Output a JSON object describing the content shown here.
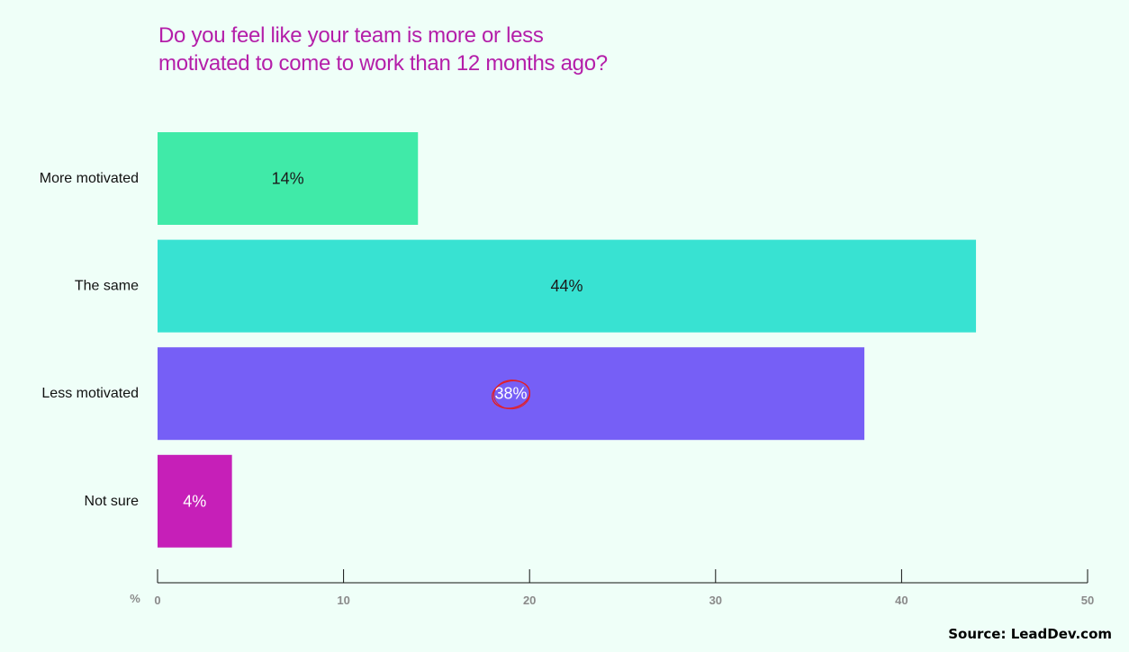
{
  "title_lines": [
    "Do you feel like your team is more or less",
    "motivated to come to work than 12 months ago?"
  ],
  "source": "Source: LeadDev.com",
  "chart_data": {
    "type": "bar",
    "orientation": "horizontal",
    "title": "Do you feel like your team is more or less motivated to come to work than 12 months ago?",
    "categories": [
      "More motivated",
      "The same",
      "Less motivated",
      "Not sure"
    ],
    "values": [
      14,
      44,
      38,
      4
    ],
    "data_labels": [
      "14%",
      "44%",
      "38%",
      "4%"
    ],
    "colors": [
      "#40eaa8",
      "#38e2d2",
      "#765ff6",
      "#c61fb8"
    ],
    "label_colors": [
      "#1a1a1a",
      "#1a1a1a",
      "#ffffff",
      "#ffffff"
    ],
    "xlabel": "%",
    "xlim": [
      0,
      50
    ],
    "xticks": [
      0,
      10,
      20,
      30,
      40,
      50
    ],
    "grid": false,
    "highlighted_label": "38%",
    "highlight_color": "#e0202a"
  }
}
